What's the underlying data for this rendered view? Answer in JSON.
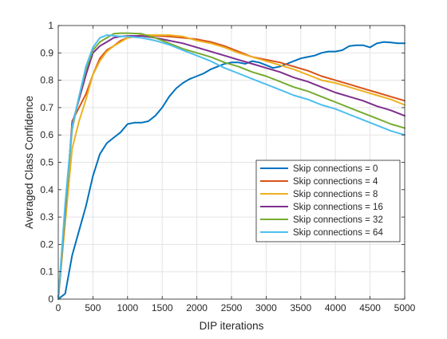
{
  "chart_data": {
    "type": "line",
    "title": "",
    "xlabel": "DIP iterations",
    "ylabel": "Averaged Class Confidence",
    "xlim": [
      0,
      5000
    ],
    "ylim": [
      0,
      1
    ],
    "x_ticks": [
      0,
      500,
      1000,
      1500,
      2000,
      2500,
      3000,
      3500,
      4000,
      4500,
      5000
    ],
    "y_ticks": [
      0,
      0.1,
      0.2,
      0.3,
      0.4,
      0.5,
      0.6,
      0.7,
      0.8,
      0.9,
      1
    ],
    "x_tick_labels": [
      "0",
      "500",
      "1000",
      "1500",
      "2000",
      "2500",
      "3000",
      "3500",
      "4000",
      "4500",
      "5000"
    ],
    "y_tick_labels": [
      "0",
      "0.1",
      "0.2",
      "0.3",
      "0.4",
      "0.5",
      "0.6",
      "0.7",
      "0.8",
      "0.9",
      "1"
    ],
    "grid": true,
    "legend_position": "lower-right",
    "series": [
      {
        "name": "Skip connections = 0",
        "color": "#0072BD",
        "x": [
          0,
          100,
          200,
          300,
          400,
          500,
          600,
          700,
          800,
          900,
          1000,
          1100,
          1200,
          1300,
          1400,
          1500,
          1600,
          1700,
          1800,
          1900,
          2000,
          2100,
          2200,
          2300,
          2400,
          2500,
          2600,
          2700,
          2800,
          2900,
          3000,
          3100,
          3200,
          3300,
          3400,
          3500,
          3600,
          3700,
          3800,
          3900,
          4000,
          4100,
          4200,
          4300,
          4400,
          4500,
          4600,
          4700,
          4800,
          4900,
          5000
        ],
        "y": [
          0.0,
          0.02,
          0.16,
          0.25,
          0.34,
          0.45,
          0.53,
          0.57,
          0.59,
          0.61,
          0.64,
          0.645,
          0.645,
          0.65,
          0.67,
          0.7,
          0.74,
          0.77,
          0.79,
          0.805,
          0.815,
          0.825,
          0.84,
          0.85,
          0.86,
          0.865,
          0.865,
          0.86,
          0.87,
          0.865,
          0.855,
          0.845,
          0.85,
          0.86,
          0.87,
          0.88,
          0.885,
          0.89,
          0.9,
          0.905,
          0.905,
          0.91,
          0.925,
          0.928,
          0.928,
          0.92,
          0.935,
          0.94,
          0.938,
          0.935,
          0.935
        ]
      },
      {
        "name": "Skip connections = 4",
        "color": "#D95319",
        "x": [
          0,
          100,
          200,
          300,
          400,
          500,
          600,
          700,
          800,
          900,
          1000,
          1200,
          1400,
          1600,
          1800,
          2000,
          2200,
          2400,
          2600,
          2800,
          3000,
          3200,
          3400,
          3600,
          3800,
          4000,
          4200,
          4400,
          4600,
          4800,
          5000
        ],
        "y": [
          0.0,
          0.3,
          0.65,
          0.7,
          0.75,
          0.82,
          0.88,
          0.91,
          0.925,
          0.945,
          0.955,
          0.963,
          0.963,
          0.96,
          0.955,
          0.95,
          0.94,
          0.925,
          0.905,
          0.885,
          0.875,
          0.865,
          0.85,
          0.835,
          0.815,
          0.8,
          0.785,
          0.77,
          0.755,
          0.74,
          0.725
        ]
      },
      {
        "name": "Skip connections = 8",
        "color": "#EDB120",
        "x": [
          0,
          100,
          200,
          300,
          400,
          500,
          600,
          700,
          800,
          900,
          1000,
          1200,
          1400,
          1600,
          1800,
          2000,
          2200,
          2400,
          2600,
          2800,
          3000,
          3200,
          3400,
          3600,
          3800,
          4000,
          4200,
          4400,
          4600,
          4800,
          5000
        ],
        "y": [
          0.0,
          0.28,
          0.55,
          0.65,
          0.73,
          0.82,
          0.87,
          0.905,
          0.925,
          0.94,
          0.955,
          0.965,
          0.965,
          0.965,
          0.96,
          0.945,
          0.935,
          0.92,
          0.9,
          0.885,
          0.87,
          0.855,
          0.84,
          0.82,
          0.8,
          0.79,
          0.775,
          0.76,
          0.745,
          0.73,
          0.71
        ]
      },
      {
        "name": "Skip connections = 16",
        "color": "#7E2F8E",
        "x": [
          0,
          100,
          200,
          300,
          400,
          500,
          600,
          700,
          800,
          900,
          1000,
          1200,
          1400,
          1600,
          1800,
          2000,
          2200,
          2400,
          2600,
          2800,
          3000,
          3200,
          3400,
          3600,
          3800,
          4000,
          4200,
          4400,
          4600,
          4800,
          5000
        ],
        "y": [
          0.0,
          0.32,
          0.64,
          0.73,
          0.82,
          0.9,
          0.925,
          0.94,
          0.955,
          0.96,
          0.962,
          0.962,
          0.955,
          0.945,
          0.935,
          0.92,
          0.905,
          0.89,
          0.875,
          0.86,
          0.845,
          0.83,
          0.81,
          0.795,
          0.775,
          0.755,
          0.74,
          0.725,
          0.705,
          0.69,
          0.67
        ]
      },
      {
        "name": "Skip connections = 32",
        "color": "#77AC30",
        "x": [
          0,
          100,
          200,
          300,
          400,
          500,
          600,
          700,
          800,
          900,
          1000,
          1200,
          1400,
          1600,
          1800,
          2000,
          2200,
          2400,
          2600,
          2800,
          3000,
          3200,
          3400,
          3600,
          3800,
          4000,
          4200,
          4400,
          4600,
          4800,
          5000
        ],
        "y": [
          0.0,
          0.33,
          0.62,
          0.74,
          0.84,
          0.91,
          0.94,
          0.955,
          0.97,
          0.972,
          0.972,
          0.97,
          0.955,
          0.935,
          0.915,
          0.9,
          0.885,
          0.865,
          0.85,
          0.83,
          0.815,
          0.795,
          0.775,
          0.76,
          0.74,
          0.72,
          0.7,
          0.68,
          0.66,
          0.64,
          0.625
        ]
      },
      {
        "name": "Skip connections = 64",
        "color": "#4DBEEE",
        "x": [
          0,
          100,
          200,
          300,
          400,
          500,
          600,
          700,
          800,
          900,
          1000,
          1200,
          1400,
          1600,
          1800,
          2000,
          2200,
          2400,
          2600,
          2800,
          3000,
          3200,
          3400,
          3600,
          3800,
          4000,
          4200,
          4400,
          4600,
          4800,
          5000
        ],
        "y": [
          0.0,
          0.35,
          0.63,
          0.74,
          0.85,
          0.92,
          0.955,
          0.965,
          0.963,
          0.96,
          0.96,
          0.955,
          0.945,
          0.93,
          0.91,
          0.89,
          0.87,
          0.845,
          0.825,
          0.805,
          0.785,
          0.765,
          0.745,
          0.73,
          0.71,
          0.695,
          0.675,
          0.655,
          0.635,
          0.615,
          0.6
        ]
      }
    ]
  }
}
